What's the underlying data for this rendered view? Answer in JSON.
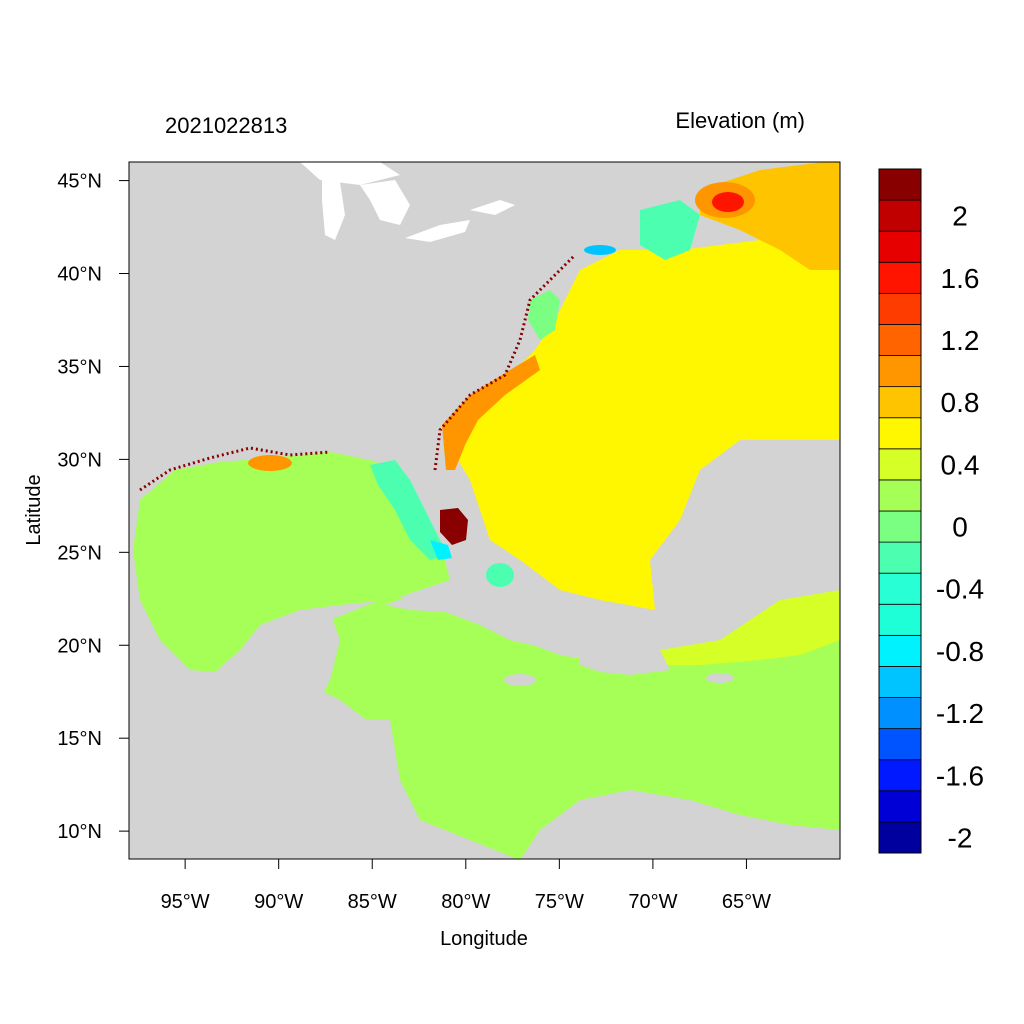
{
  "header": {
    "timestamp": "2021022813",
    "variable_title": "Elevation (m)"
  },
  "axes": {
    "xlabel": "Longitude",
    "ylabel": "Latitude",
    "lon_ticks": [
      {
        "value": -95,
        "label": "95°W"
      },
      {
        "value": -90,
        "label": "90°W"
      },
      {
        "value": -85,
        "label": "85°W"
      },
      {
        "value": -80,
        "label": "80°W"
      },
      {
        "value": -75,
        "label": "75°W"
      },
      {
        "value": -70,
        "label": "70°W"
      },
      {
        "value": -65,
        "label": "65°W"
      }
    ],
    "lat_ticks": [
      {
        "value": 45,
        "label": "45°N"
      },
      {
        "value": 40,
        "label": "40°N"
      },
      {
        "value": 35,
        "label": "35°N"
      },
      {
        "value": 30,
        "label": "30°N"
      },
      {
        "value": 25,
        "label": "25°N"
      },
      {
        "value": 20,
        "label": "20°N"
      },
      {
        "value": 15,
        "label": "15°N"
      },
      {
        "value": 10,
        "label": "10°N"
      }
    ],
    "lon_range": [
      -98,
      -60
    ],
    "lat_range": [
      8.5,
      46
    ]
  },
  "colorbar": {
    "levels": [
      {
        "color": "#00009e",
        "label": "-2"
      },
      {
        "color": "#0000d6",
        "label": ""
      },
      {
        "color": "#0019ff",
        "label": "-1.6"
      },
      {
        "color": "#0054ff",
        "label": ""
      },
      {
        "color": "#0090ff",
        "label": "-1.2"
      },
      {
        "color": "#00c4ff",
        "label": ""
      },
      {
        "color": "#00f2ff",
        "label": "-0.8"
      },
      {
        "color": "#1effd8",
        "label": ""
      },
      {
        "color": "#28ffd4",
        "label": "-0.4"
      },
      {
        "color": "#4cffb0",
        "label": ""
      },
      {
        "color": "#7aff82",
        "label": "0"
      },
      {
        "color": "#a6ff56",
        "label": ""
      },
      {
        "color": "#d6ff28",
        "label": "0.4"
      },
      {
        "color": "#fff700",
        "label": ""
      },
      {
        "color": "#ffc400",
        "label": "0.8"
      },
      {
        "color": "#ff9600",
        "label": ""
      },
      {
        "color": "#ff6400",
        "label": "1.2"
      },
      {
        "color": "#ff3c00",
        "label": ""
      },
      {
        "color": "#ff1400",
        "label": "1.6"
      },
      {
        "color": "#e60000",
        "label": ""
      },
      {
        "color": "#c00000",
        "label": "2"
      },
      {
        "color": "#880000",
        "label": ""
      }
    ]
  },
  "colors": {
    "land": "#d3d3d3",
    "lake": "#ffffff",
    "ocean_neutral": "#a6ff56",
    "ocean_high": "#fff700",
    "ocean_mid": "#d6ff28",
    "extreme": "#880000"
  }
}
